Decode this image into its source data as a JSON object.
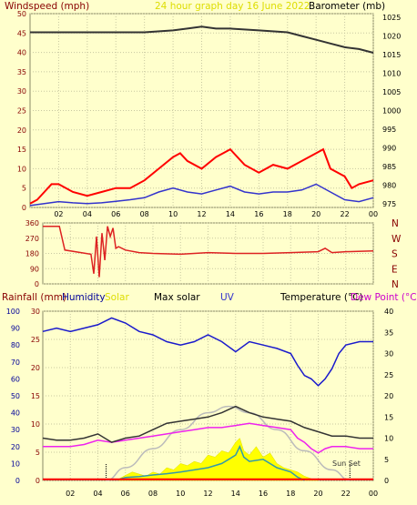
{
  "header": {
    "windspeed": "Windspeed (mph)",
    "subtitle": "24 hour graph day  16 June 2022",
    "barometer": "Barometer (mb)"
  },
  "legend": {
    "rainfall": "Rainfall (mm)",
    "humidity": "Humidity",
    "solar": "Solar",
    "max_solar": "Max solar",
    "uv": "UV",
    "temperature": "Temperature (°C)",
    "dew_point": "Dew Point (°C)"
  },
  "annotations": {
    "sun_set": "Sun Set"
  },
  "colors": {
    "background": "#ffffcc",
    "grid": "#c8c8a0",
    "wind_speed": "#ff0000",
    "wind_avg": "#3333cc",
    "barometer": "#333333",
    "direction": "#dd2222",
    "humidity": "#1a1acc",
    "solar": "#ffff00",
    "max_solar": "#bbbbbb",
    "uv": "#3399aa",
    "temperature": "#333333",
    "dew_point": "#ee22ee",
    "rainfall": "#ff0000",
    "left_axis_text": "#880000",
    "hum_axis_text": "#000099",
    "gold_title": "#dddd00"
  },
  "chart_data": [
    {
      "type": "line",
      "name": "wind-barometer",
      "x_ticks": [
        "02",
        "04",
        "06",
        "08",
        "10",
        "12",
        "14",
        "16",
        "18",
        "20",
        "22",
        "00"
      ],
      "y_left_ticks": [
        "0",
        "5",
        "10",
        "15",
        "20",
        "25",
        "30",
        "35",
        "40",
        "45",
        "50"
      ],
      "y_right_ticks": [
        "975",
        "980",
        "985",
        "990",
        "995",
        "1000",
        "1005",
        "1010",
        "1015",
        "1020",
        "1025"
      ],
      "y_left_range": [
        0,
        50
      ],
      "y_right_range": [
        974,
        1026
      ],
      "series": [
        {
          "name": "Barometer (mb)",
          "x": [
            0,
            2,
            4,
            6,
            8,
            10,
            11,
            12,
            13,
            14,
            16,
            18,
            19,
            20,
            21,
            22,
            23,
            24
          ],
          "y": [
            1021,
            1021,
            1021,
            1021,
            1021,
            1021.5,
            1022,
            1022.5,
            1022,
            1022,
            1021.5,
            1021,
            1020,
            1019,
            1018,
            1017,
            1016.5,
            1015.5
          ]
        },
        {
          "x": [
            0,
            0.5,
            1,
            1.5,
            2,
            3,
            4,
            5,
            6,
            7,
            8,
            9,
            10,
            10.5,
            11,
            12,
            13,
            13.5,
            14,
            15,
            16,
            17,
            18,
            19,
            20,
            20.5,
            21,
            22,
            22.5,
            23,
            24
          ],
          "y": [
            1,
            2,
            4,
            6,
            6,
            4,
            3,
            4,
            5,
            5,
            7,
            10,
            13,
            14,
            12,
            10,
            13,
            14,
            15,
            11,
            9,
            11,
            10,
            12,
            14,
            15,
            10,
            8,
            5,
            6,
            7
          ]
        },
        {
          "x": [
            0,
            1,
            2,
            3,
            4,
            5,
            6,
            7,
            8,
            9,
            10,
            11,
            12,
            13,
            14,
            15,
            16,
            17,
            18,
            19,
            20,
            21,
            22,
            23,
            24
          ],
          "y": [
            0.5,
            1,
            1.5,
            1.2,
            1,
            1.2,
            1.6,
            2,
            2.5,
            4,
            5,
            4,
            3.5,
            4.5,
            5.5,
            4,
            3.5,
            4,
            4,
            4.5,
            6,
            4,
            2,
            1.5,
            2.5
          ]
        }
      ]
    },
    {
      "type": "line",
      "name": "wind-direction",
      "y_left_ticks": [
        "360",
        "270",
        "180",
        "90",
        "0"
      ],
      "y_right_labels": [
        "N",
        "W",
        "S",
        "E",
        "N"
      ],
      "y_range": [
        0,
        360
      ],
      "x": [
        0,
        1.2,
        1.6,
        3.5,
        3.7,
        3.9,
        4.1,
        4.3,
        4.5,
        4.7,
        4.9,
        5.1,
        5.3,
        5.5,
        6,
        7,
        8,
        10,
        12,
        14,
        16,
        18,
        20,
        20.5,
        21,
        22,
        24
      ],
      "y": [
        340,
        340,
        200,
        175,
        60,
        280,
        40,
        300,
        140,
        340,
        280,
        330,
        210,
        220,
        200,
        185,
        180,
        175,
        185,
        180,
        180,
        185,
        190,
        210,
        185,
        190,
        195
      ]
    },
    {
      "type": "area",
      "name": "rain-humidity-solar-temperature",
      "x_ticks": [
        "02",
        "04",
        "06",
        "08",
        "10",
        "12",
        "14",
        "16",
        "18",
        "20",
        "22",
        "00"
      ],
      "y_rain_ticks": [
        "0",
        "5",
        "10",
        "15",
        "20",
        "25",
        "30"
      ],
      "y_humidity_ticks": [
        "0",
        "10",
        "20",
        "30",
        "40",
        "50",
        "60",
        "70",
        "80",
        "90",
        "100"
      ],
      "y_temp_ticks": [
        "0",
        "5",
        "10",
        "15",
        "20",
        "25",
        "30",
        "35",
        "40"
      ],
      "rain_range": [
        0,
        30
      ],
      "humidity_range": [
        0,
        100
      ],
      "temperature_range": [
        0,
        40
      ],
      "sunset_hour": 22.3,
      "sunrise_hour": 4.6,
      "series": [
        {
          "name": "Humidity",
          "x": [
            0,
            1,
            2,
            3,
            4,
            5,
            6,
            7,
            8,
            9,
            10,
            11,
            12,
            13,
            14,
            15,
            16,
            17,
            18,
            18.5,
            19,
            19.5,
            20,
            20.5,
            21,
            21.5,
            22,
            23,
            24
          ],
          "y": [
            88,
            90,
            88,
            90,
            92,
            96,
            93,
            88,
            86,
            82,
            80,
            82,
            86,
            82,
            76,
            82,
            80,
            78,
            75,
            68,
            62,
            60,
            56,
            60,
            66,
            75,
            80,
            82,
            82
          ]
        },
        {
          "name": "Temperature (°C)",
          "x": [
            0,
            1,
            2,
            3,
            4,
            5,
            6,
            7,
            8,
            9,
            10,
            11,
            12,
            13,
            14,
            15,
            16,
            17,
            18,
            19,
            20,
            21,
            22,
            23,
            24
          ],
          "y": [
            10,
            9.5,
            9.5,
            10,
            11,
            9,
            10,
            10.5,
            12,
            13.5,
            14,
            14.5,
            15,
            16,
            17.5,
            16,
            15,
            14.5,
            14,
            12.5,
            11.5,
            10.5,
            10.5,
            10,
            10
          ]
        },
        {
          "name": "Dew Point (°C)",
          "x": [
            0,
            1,
            2,
            3,
            4,
            5,
            6,
            7,
            8,
            9,
            10,
            11,
            12,
            13,
            14,
            15,
            16,
            17,
            18,
            18.5,
            19,
            19.5,
            20,
            20.5,
            21,
            22,
            23,
            24
          ],
          "y": [
            8,
            8,
            8,
            8.5,
            9.5,
            9,
            9.5,
            10,
            10.5,
            11,
            11.5,
            12,
            12.5,
            12.5,
            13,
            13.5,
            13,
            12.5,
            12,
            10,
            9,
            7.5,
            6.5,
            7.5,
            8,
            8,
            7.5,
            7.5
          ]
        },
        {
          "name": "Max solar",
          "x": [
            4.6,
            6,
            8,
            10,
            12,
            13.5,
            15,
            17,
            19,
            21,
            22.3
          ],
          "y": [
            0,
            3,
            7.5,
            12,
            16,
            17.5,
            16,
            12,
            7,
            2.5,
            0
          ]
        },
        {
          "name": "Solar",
          "x": [
            5.5,
            6,
            6.5,
            7,
            7.5,
            8,
            8.5,
            9,
            9.5,
            10,
            10.5,
            11,
            11.5,
            12,
            12.5,
            13,
            13.5,
            14,
            14.3,
            14.6,
            15,
            15.5,
            16,
            16.5,
            17,
            17.5,
            18,
            18.5,
            19,
            19.5,
            20
          ],
          "y": [
            0.3,
            1.2,
            2,
            1.5,
            1,
            2,
            1.5,
            3,
            2.5,
            4,
            3.5,
            4.5,
            4,
            6,
            5.5,
            7,
            6.5,
            9,
            10,
            7,
            6,
            8,
            5.5,
            6.5,
            4,
            3,
            2.5,
            2,
            1,
            0.4,
            0
          ]
        },
        {
          "name": "UV",
          "x": [
            5.5,
            6,
            7,
            8,
            9,
            10,
            11,
            12,
            13,
            13.5,
            14,
            14.3,
            14.6,
            15,
            16,
            17,
            18,
            18.5,
            19
          ],
          "y": [
            0.2,
            0.7,
            0.9,
            1.3,
            1.6,
            2,
            2.5,
            3,
            4,
            5,
            6,
            8,
            5.5,
            4.5,
            5,
            3,
            2,
            0.8,
            0
          ]
        },
        {
          "name": "Rainfall (mm)",
          "x": [
            0,
            24
          ],
          "y": [
            0.2,
            0.2
          ]
        }
      ]
    }
  ]
}
